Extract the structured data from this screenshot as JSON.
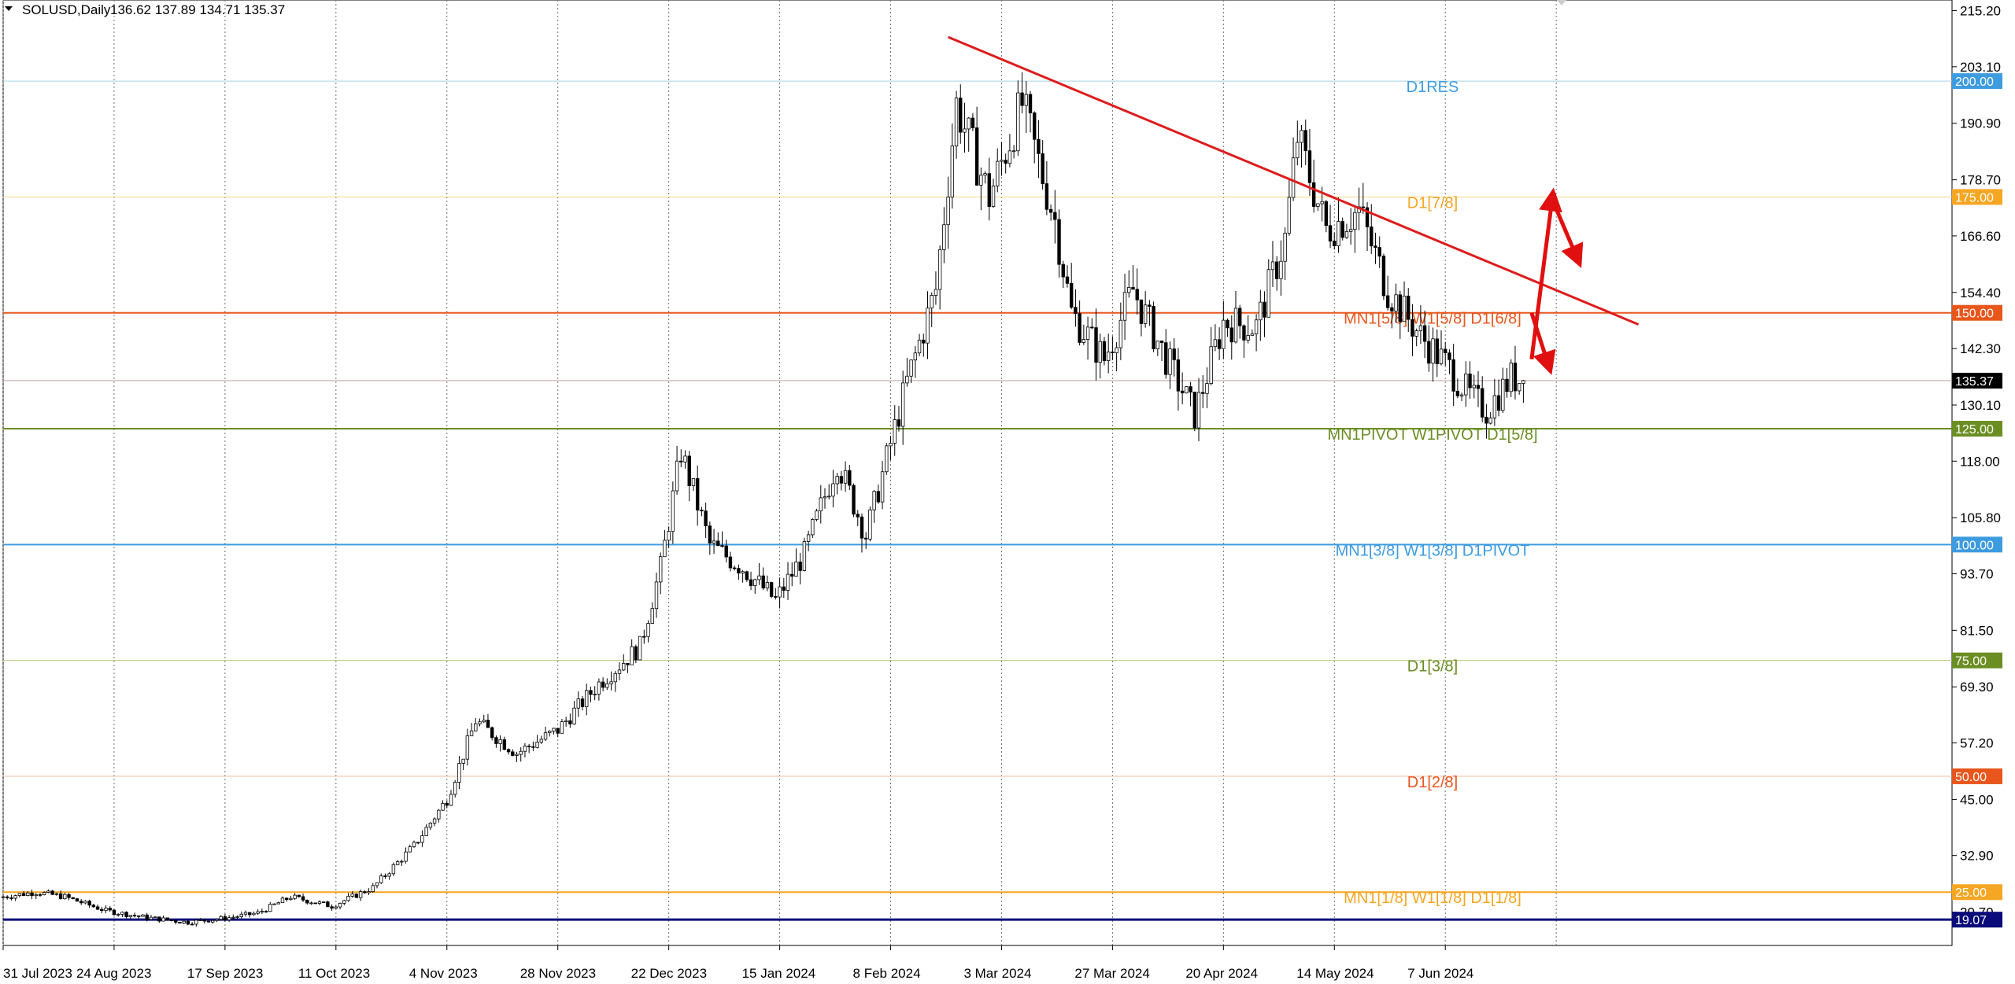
{
  "header": {
    "symbol": "SOLUSD,Daily",
    "ohlc": "136.62 137.89 134.71 135.37"
  },
  "chart_data": {
    "type": "candlestick",
    "title": "SOLUSD,Daily",
    "ylim": [
      13.5,
      217.5
    ],
    "y_ticks": [
      "215.20",
      "203.10",
      "190.90",
      "178.70",
      "166.60",
      "154.40",
      "142.30",
      "130.10",
      "118.00",
      "105.80",
      "93.70",
      "81.50",
      "69.30",
      "57.20",
      "45.00",
      "32.90",
      "20.70"
    ],
    "x_labels": [
      "31 Jul 2023",
      "24 Aug 2023",
      "17 Sep 2023",
      "11 Oct 2023",
      "4 Nov 2023",
      "28 Nov 2023",
      "22 Dec 2023",
      "15 Jan 2024",
      "8 Feb 2024",
      "3 Mar 2024",
      "27 Mar 2024",
      "20 Apr 2024",
      "14 May 2024",
      "7 Jun 2024"
    ],
    "grid": true,
    "last_price": "135.37",
    "levels": [
      {
        "price": 200,
        "badge": "200.00",
        "label": "D1RES",
        "color": "#3d9be0",
        "line": "#a8d4e6",
        "width": 1
      },
      {
        "price": 175,
        "badge": "175.00",
        "label": "D1[7/8]",
        "color": "#f5a623",
        "line": "#f5d28a",
        "width": 1
      },
      {
        "price": 150,
        "badge": "150.00",
        "label": "MN1[5/8] W1[5/8] D1[6/8]",
        "color": "#e8561c",
        "line": "#e8561c",
        "width": 2
      },
      {
        "price": 125,
        "badge": "125.00",
        "label": "MN1PIVOT W1PIVOT D1[5/8]",
        "color": "#6b8e23",
        "line": "#6b8e23",
        "width": 2
      },
      {
        "price": 100,
        "badge": "100.00",
        "label": "MN1[3/8] W1[3/8] D1PIVOT",
        "color": "#3d9be0",
        "line": "#3d9be0",
        "width": 2
      },
      {
        "price": 75,
        "badge": "75.00",
        "label": "D1[3/8]",
        "color": "#6b8e23",
        "line": "#b5c98a",
        "width": 1
      },
      {
        "price": 50,
        "badge": "50.00",
        "label": "D1[2/8]",
        "color": "#e8561c",
        "line": "#f0b89c",
        "width": 1
      },
      {
        "price": 25,
        "badge": "25.00",
        "label": "MN1[1/8] W1[1/8] D1[1/8]",
        "color": "#f5a623",
        "line": "#f5a623",
        "width": 2
      },
      {
        "price": 19.07,
        "badge": "19.07",
        "label": "",
        "color": "#0a0a7a",
        "line": "#0a0a7a",
        "width": 3
      }
    ],
    "trendline": {
      "from_day": 230,
      "from_price": 209.5,
      "to_day": 398,
      "to_price": 147.5,
      "color": "#dd1c1c"
    },
    "arrows": [
      {
        "from_day": 372,
        "from_price": 140,
        "to_day": 377,
        "to_price": 174.5
      },
      {
        "from_day": 377,
        "from_price": 174.5,
        "to_day": 383,
        "to_price": 162
      },
      {
        "from_day": 372,
        "from_price": 150,
        "to_day": 376,
        "to_price": 139
      }
    ],
    "trend_points": [
      [
        0,
        24
      ],
      [
        8,
        25
      ],
      [
        15,
        24
      ],
      [
        25,
        21
      ],
      [
        35,
        19.5
      ],
      [
        45,
        18.5
      ],
      [
        55,
        19.5
      ],
      [
        62,
        20.5
      ],
      [
        70,
        24
      ],
      [
        80,
        22
      ],
      [
        90,
        26
      ],
      [
        100,
        35
      ],
      [
        108,
        45
      ],
      [
        115,
        62
      ],
      [
        125,
        55
      ],
      [
        135,
        60
      ],
      [
        145,
        70
      ],
      [
        155,
        78
      ],
      [
        160,
        95
      ],
      [
        165,
        120
      ],
      [
        172,
        100
      ],
      [
        180,
        95
      ],
      [
        188,
        88
      ],
      [
        195,
        98
      ],
      [
        203,
        118
      ],
      [
        210,
        102
      ],
      [
        220,
        135
      ],
      [
        227,
        155
      ],
      [
        232,
        195
      ],
      [
        240,
        175
      ],
      [
        248,
        195
      ],
      [
        256,
        170
      ],
      [
        260,
        150
      ],
      [
        268,
        140
      ],
      [
        275,
        155
      ],
      [
        282,
        142
      ],
      [
        290,
        128
      ],
      [
        297,
        148
      ],
      [
        305,
        147
      ],
      [
        312,
        166
      ],
      [
        315,
        188
      ],
      [
        322,
        168
      ],
      [
        330,
        172
      ],
      [
        337,
        155
      ],
      [
        345,
        145
      ],
      [
        352,
        138
      ],
      [
        357,
        132
      ],
      [
        361,
        129
      ],
      [
        367,
        136
      ],
      [
        370,
        135.4
      ]
    ],
    "color_scheme": {
      "bull": "#ffffff",
      "bear": "#000000",
      "grid": "#707070"
    }
  }
}
